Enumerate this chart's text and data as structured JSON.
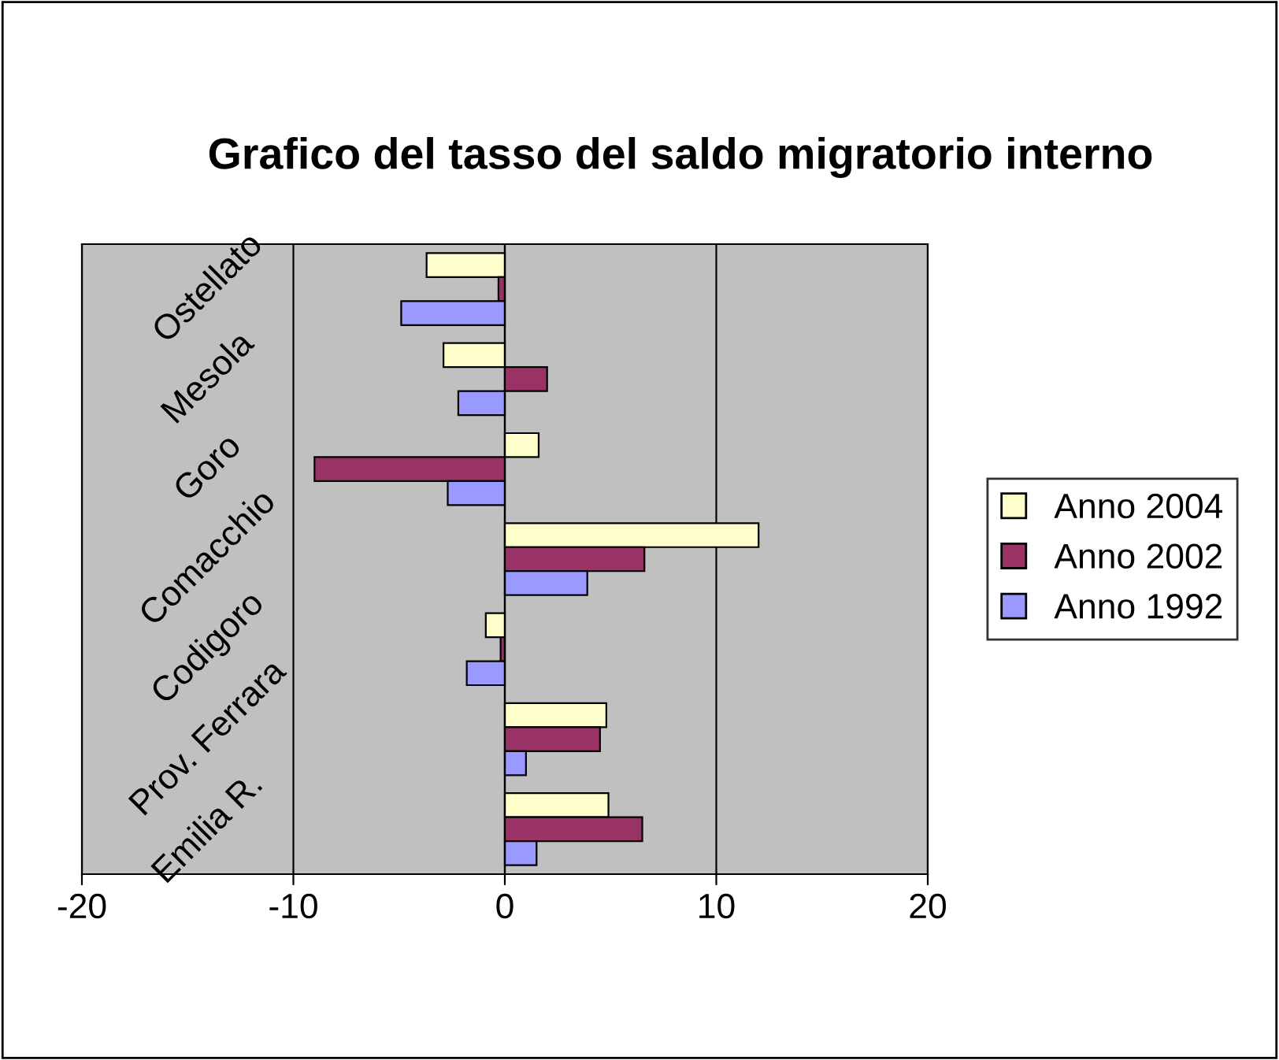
{
  "chart_data": {
    "type": "bar",
    "orientation": "horizontal",
    "title": "Grafico del tasso del saldo migratorio interno",
    "categories": [
      "Ostellato",
      "Mesola",
      "Goro",
      "Comacchio",
      "Codigoro",
      "Prov. Ferrara",
      "Emilia R."
    ],
    "series": [
      {
        "name": "Anno 2004",
        "color": "#ffffcc",
        "values": [
          -3.7,
          -2.9,
          1.6,
          12.0,
          -0.9,
          4.8,
          4.9
        ]
      },
      {
        "name": "Anno 2002",
        "color": "#993366",
        "values": [
          -0.3,
          2.0,
          -9.0,
          6.6,
          -0.2,
          4.5,
          6.5
        ]
      },
      {
        "name": "Anno 1992",
        "color": "#9999ff",
        "values": [
          -4.9,
          -2.2,
          -2.7,
          3.9,
          -1.8,
          1.0,
          1.5
        ]
      }
    ],
    "xlim": [
      -20,
      20
    ],
    "xticks": [
      -20,
      -10,
      0,
      10,
      20
    ],
    "grid": "x",
    "legend": "right"
  }
}
